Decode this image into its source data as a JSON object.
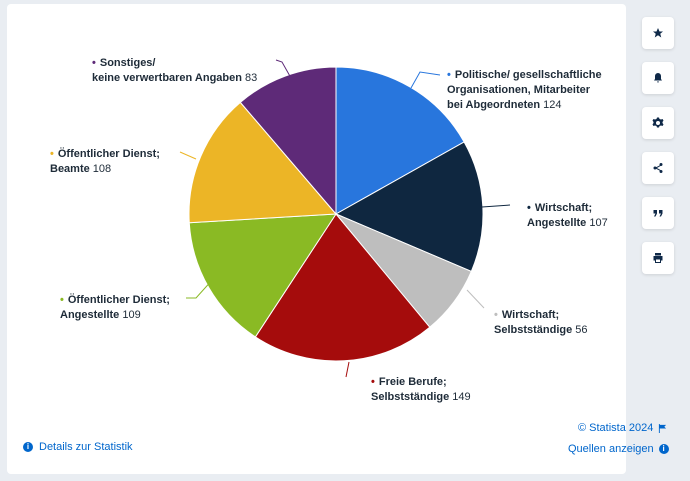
{
  "chart_data": {
    "type": "pie",
    "slices": [
      {
        "label_lines": [
          "Politische/ gesellschaftliche",
          "Organisationen, Mitarbeiter",
          "bei Abgeordneten"
        ],
        "value": 124,
        "color": "#2876dd"
      },
      {
        "label_lines": [
          "Wirtschaft;",
          "Angestellte"
        ],
        "value": 107,
        "color": "#0f2740"
      },
      {
        "label_lines": [
          "Wirtschaft;",
          "Selbstständige"
        ],
        "value": 56,
        "color": "#bebebe"
      },
      {
        "label_lines": [
          "Freie Berufe;",
          "Selbstständige"
        ],
        "value": 149,
        "color": "#a50c0c"
      },
      {
        "label_lines": [
          "Öffentlicher Dienst;",
          "Angestellte"
        ],
        "value": 109,
        "color": "#8aba24"
      },
      {
        "label_lines": [
          "Öffentlicher Dienst;",
          "Beamte"
        ],
        "value": 108,
        "color": "#ecb526"
      },
      {
        "label_lines": [
          "Sonstiges/",
          "keine verwertbaren Angaben"
        ],
        "value": 83,
        "color": "#5e2a78"
      }
    ]
  },
  "footer": {
    "details_label": "Details zur Statistik",
    "copyright": "© Statista 2024",
    "sources_label": "Quellen anzeigen"
  },
  "toolbar": {
    "icons": [
      "star-icon",
      "bell-icon",
      "gear-icon",
      "share-icon",
      "quote-icon",
      "print-icon"
    ]
  }
}
